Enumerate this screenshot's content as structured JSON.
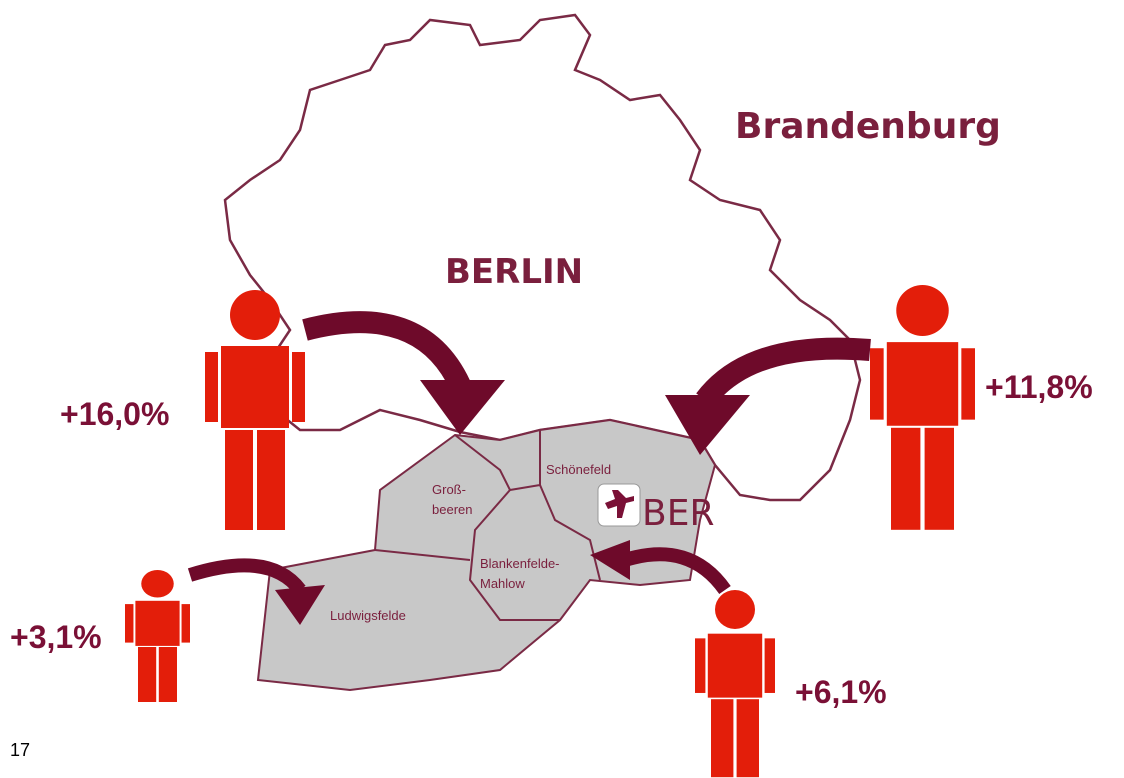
{
  "map": {
    "region_label": "Brandenburg",
    "city_label": "BERLIN",
    "airport_label": "BER",
    "districts": [
      {
        "lines": [
          "Schönefeld"
        ]
      },
      {
        "lines": [
          "Groß-",
          "beeren"
        ]
      },
      {
        "lines": [
          "Blankenfelde-",
          "Mahlow"
        ]
      },
      {
        "lines": [
          "Ludwigsfelde"
        ]
      }
    ]
  },
  "growth": [
    {
      "label": "+16,0%"
    },
    {
      "label": "+11,8%"
    },
    {
      "label": "+3,1%"
    },
    {
      "label": "+6,1%"
    }
  ],
  "page_number": "17"
}
